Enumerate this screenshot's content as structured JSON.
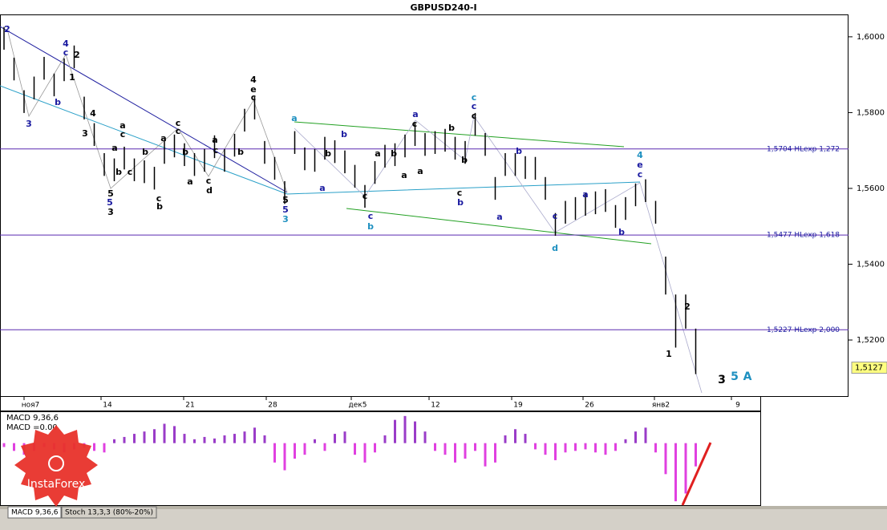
{
  "chart_data": {
    "type": "ohlc",
    "title": "GBPUSD240-I",
    "high": [
      1.6026,
      1.5945,
      1.5859,
      1.5895,
      1.5947,
      1.5903,
      1.5943,
      1.5977,
      1.5842,
      1.5772,
      1.5693,
      1.5679,
      1.571,
      1.5679,
      1.5674,
      1.5657,
      1.5725,
      1.5742,
      1.5719,
      1.5693,
      1.5704,
      1.574,
      1.5704,
      1.5744,
      1.581,
      1.5842,
      1.5725,
      1.5683,
      1.5619,
      1.5751,
      1.5708,
      1.5704,
      1.5736,
      1.5727,
      1.57,
      1.5662,
      1.5609,
      1.5672,
      1.5715,
      1.5719,
      1.5742,
      1.5772,
      1.5746,
      1.5751,
      1.5757,
      1.5736,
      1.5725,
      1.5799,
      1.5746,
      1.563,
      1.5693,
      1.5693,
      1.5685,
      1.5683,
      1.563,
      1.5535,
      1.5567,
      1.5577,
      1.5588,
      1.5592,
      1.5598,
      1.5556,
      1.5577,
      1.5613,
      1.5624,
      1.5567,
      1.542,
      1.532,
      1.532,
      1.523
    ],
    "low": [
      1.5966,
      1.5885,
      1.5799,
      1.5835,
      1.5887,
      1.5843,
      1.5883,
      1.5917,
      1.5782,
      1.5712,
      1.5633,
      1.5619,
      1.565,
      1.5619,
      1.5614,
      1.5597,
      1.5665,
      1.5682,
      1.5659,
      1.5633,
      1.5644,
      1.568,
      1.5644,
      1.5684,
      1.575,
      1.5782,
      1.5665,
      1.5623,
      1.5559,
      1.5691,
      1.5648,
      1.5644,
      1.5676,
      1.5667,
      1.564,
      1.5602,
      1.5549,
      1.5612,
      1.5655,
      1.5659,
      1.5682,
      1.5712,
      1.5686,
      1.5691,
      1.5697,
      1.5676,
      1.5665,
      1.5739,
      1.5686,
      1.557,
      1.5633,
      1.5633,
      1.5625,
      1.5623,
      1.557,
      1.5475,
      1.5507,
      1.5517,
      1.5528,
      1.5532,
      1.5538,
      1.5496,
      1.5517,
      1.5553,
      1.5564,
      1.5507,
      1.532,
      1.518,
      1.523,
      1.511
    ],
    "color": "#000000",
    "ylim": [
      1.5052,
      1.6059
    ],
    "yticks": [
      {
        "value": 1.6,
        "label": "1,6000"
      },
      {
        "value": 1.58,
        "label": "1,5800"
      },
      {
        "value": 1.56,
        "label": "1,5600"
      },
      {
        "value": 1.54,
        "label": "1,5400"
      },
      {
        "value": 1.52,
        "label": "1,5200"
      }
    ],
    "x_labels": [
      "ноя7",
      "14",
      "21",
      "28",
      "дек5",
      "12",
      "19",
      "26",
      "янв2",
      "9"
    ],
    "levels": [
      {
        "value": 1.5704,
        "label": "1,5704 HLexp 1,272"
      },
      {
        "value": 1.5477,
        "label": "1,5477 HLexp 1,618"
      },
      {
        "value": 1.5227,
        "label": "1,5227 HLexp 2,000"
      }
    ],
    "level_color": "#5a2ab0",
    "last_price": {
      "value": 1.5127,
      "label": "1,5127"
    },
    "wave_labels": [
      "2",
      "3",
      "4",
      "c",
      "1",
      "2",
      "b",
      "4",
      "3",
      "a",
      "c",
      "a",
      "b",
      "b",
      "c",
      "5",
      "5",
      "3",
      "c",
      "b",
      "a",
      "c",
      "c",
      "a",
      "b",
      "a",
      "c",
      "c",
      "d",
      "b",
      "4",
      "e",
      "c",
      "5",
      "5",
      "3",
      "a",
      "a",
      "b",
      "b",
      "c",
      "c",
      "b",
      "a",
      "b",
      "a",
      "a",
      "c",
      "a",
      "b",
      "b",
      "c",
      "b",
      "c",
      "c",
      "c",
      "b",
      "a",
      "c",
      "d",
      "a",
      "b",
      "4",
      "e",
      "c",
      "1",
      "2",
      "3",
      "5",
      "A"
    ],
    "macd": {
      "title": "MACD 9,36,6",
      "value_label": "MACD =0.00",
      "values": [
        -0.0005,
        -0.001,
        -0.0015,
        -0.001,
        -0.0005,
        -0.0008,
        -0.0012,
        -0.0008,
        -0.0006,
        -0.001,
        -0.0012,
        0.0005,
        0.0008,
        0.0012,
        0.0015,
        0.0018,
        0.0025,
        0.0022,
        0.0012,
        0.0005,
        0.0008,
        0.0006,
        0.001,
        0.0012,
        0.0015,
        0.002,
        0.001,
        -0.0025,
        -0.0035,
        -0.002,
        -0.0015,
        0.0005,
        -0.001,
        0.0012,
        0.0015,
        -0.0015,
        -0.0025,
        -0.0012,
        0.001,
        0.003,
        0.0035,
        0.0028,
        0.0015,
        -0.001,
        -0.0015,
        -0.0025,
        -0.002,
        -0.001,
        -0.003,
        -0.0025,
        0.001,
        0.0018,
        0.0012,
        -0.0008,
        -0.0015,
        -0.0022,
        -0.0012,
        -0.001,
        -0.0008,
        -0.0012,
        -0.0015,
        -0.001,
        0.0005,
        0.0015,
        0.002,
        -0.0012,
        -0.004,
        -0.0075,
        -0.0065,
        -0.003
      ],
      "ylim": [
        -0.008,
        0.004
      ],
      "positive_color": "#9a3cc8",
      "negative_color": "#e040e0"
    },
    "tabs": [
      "MACD 9,36,6",
      "Stoch 13,3,3 (80%-20%)"
    ],
    "logo": "InstaForex"
  }
}
